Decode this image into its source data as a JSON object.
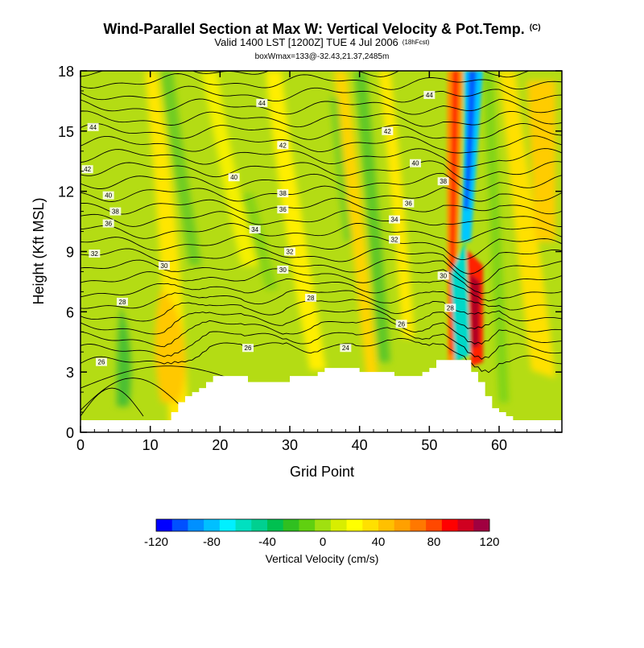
{
  "chart_data": {
    "type": "heatmap",
    "title": "Wind-Parallel Section at Max W: Vertical Velocity & Pot.Temp.",
    "title_mark": "(C)",
    "subtitle": "Valid 1400 LST [1200Z] TUE 4 Jul 2006",
    "subtitle_note": "(18hFcst)",
    "subtitle2": "boxWmax=133@-32.43,21.37,2485m",
    "xlabel": "Grid Point",
    "ylabel": "Height (Kft MSL)",
    "xlim": [
      0,
      69
    ],
    "ylim": [
      0,
      18
    ],
    "xticks": [
      "0",
      "10",
      "20",
      "30",
      "40",
      "50",
      "60"
    ],
    "yticks": [
      "0",
      "3",
      "6",
      "9",
      "12",
      "15",
      "18"
    ],
    "colorbar": {
      "label": "Vertical Velocity (cm/s)",
      "range": [
        -120,
        120
      ],
      "tick_labels": [
        "-120",
        "-80",
        "-40",
        "0",
        "40",
        "80",
        "120"
      ],
      "colors": [
        "#0000ff",
        "#0050ff",
        "#0090ff",
        "#00c0ff",
        "#00f0ff",
        "#00e0c0",
        "#00d090",
        "#00c050",
        "#30c020",
        "#60d010",
        "#a0e010",
        "#d8ee00",
        "#ffff00",
        "#ffe000",
        "#ffc000",
        "#ffa000",
        "#ff7800",
        "#ff4800",
        "#ff0000",
        "#d00020",
        "#a00040"
      ]
    },
    "terrain_kft": [
      0.6,
      0.6,
      0.6,
      0.6,
      0.6,
      0.6,
      0.6,
      0.6,
      0.6,
      0.6,
      0.6,
      0.6,
      0.6,
      1.0,
      1.5,
      1.8,
      2.0,
      2.2,
      2.5,
      2.8,
      2.8,
      2.8,
      2.8,
      2.8,
      2.5,
      2.5,
      2.5,
      2.5,
      2.5,
      2.5,
      2.8,
      2.8,
      2.8,
      2.8,
      3.0,
      3.2,
      3.2,
      3.2,
      3.2,
      3.2,
      3.0,
      3.0,
      3.0,
      3.0,
      3.0,
      2.8,
      2.8,
      2.8,
      2.8,
      3.0,
      3.2,
      3.6,
      3.6,
      3.6,
      3.6,
      3.6,
      3.0,
      2.5,
      1.8,
      1.2,
      1.0,
      0.8,
      0.6,
      0.6,
      0.6,
      0.6,
      0.6,
      0.6,
      0.6,
      0.6
    ],
    "theta_contour_labels": [
      {
        "text": "44",
        "x": 26,
        "y": 16.4
      },
      {
        "text": "44",
        "x": 1.8,
        "y": 15.2
      },
      {
        "text": "44",
        "x": 50,
        "y": 16.8
      },
      {
        "text": "42",
        "x": 29,
        "y": 14.3
      },
      {
        "text": "42",
        "x": 1,
        "y": 13.1
      },
      {
        "text": "42",
        "x": 44,
        "y": 15
      },
      {
        "text": "40",
        "x": 22,
        "y": 12.7
      },
      {
        "text": "40",
        "x": 4,
        "y": 11.8
      },
      {
        "text": "40",
        "x": 48,
        "y": 13.4
      },
      {
        "text": "38",
        "x": 29,
        "y": 11.9
      },
      {
        "text": "38",
        "x": 5,
        "y": 11
      },
      {
        "text": "38",
        "x": 52,
        "y": 12.5
      },
      {
        "text": "36",
        "x": 29,
        "y": 11.1
      },
      {
        "text": "36",
        "x": 4,
        "y": 10.4
      },
      {
        "text": "36",
        "x": 47,
        "y": 11.4
      },
      {
        "text": "34",
        "x": 25,
        "y": 10.1
      },
      {
        "text": "34",
        "x": 45,
        "y": 10.6
      },
      {
        "text": "32",
        "x": 2,
        "y": 8.9
      },
      {
        "text": "32",
        "x": 30,
        "y": 9
      },
      {
        "text": "32",
        "x": 45,
        "y": 9.6
      },
      {
        "text": "30",
        "x": 12,
        "y": 8.3
      },
      {
        "text": "30",
        "x": 29,
        "y": 8.1
      },
      {
        "text": "30",
        "x": 52,
        "y": 7.8
      },
      {
        "text": "28",
        "x": 6,
        "y": 6.5
      },
      {
        "text": "28",
        "x": 33,
        "y": 6.7
      },
      {
        "text": "28",
        "x": 53,
        "y": 6.2
      },
      {
        "text": "26",
        "x": 46,
        "y": 5.4
      },
      {
        "text": "26",
        "x": 24,
        "y": 4.2
      },
      {
        "text": "24",
        "x": 38,
        "y": 4.2
      },
      {
        "text": "26",
        "x": 3,
        "y": 3.5
      }
    ]
  }
}
